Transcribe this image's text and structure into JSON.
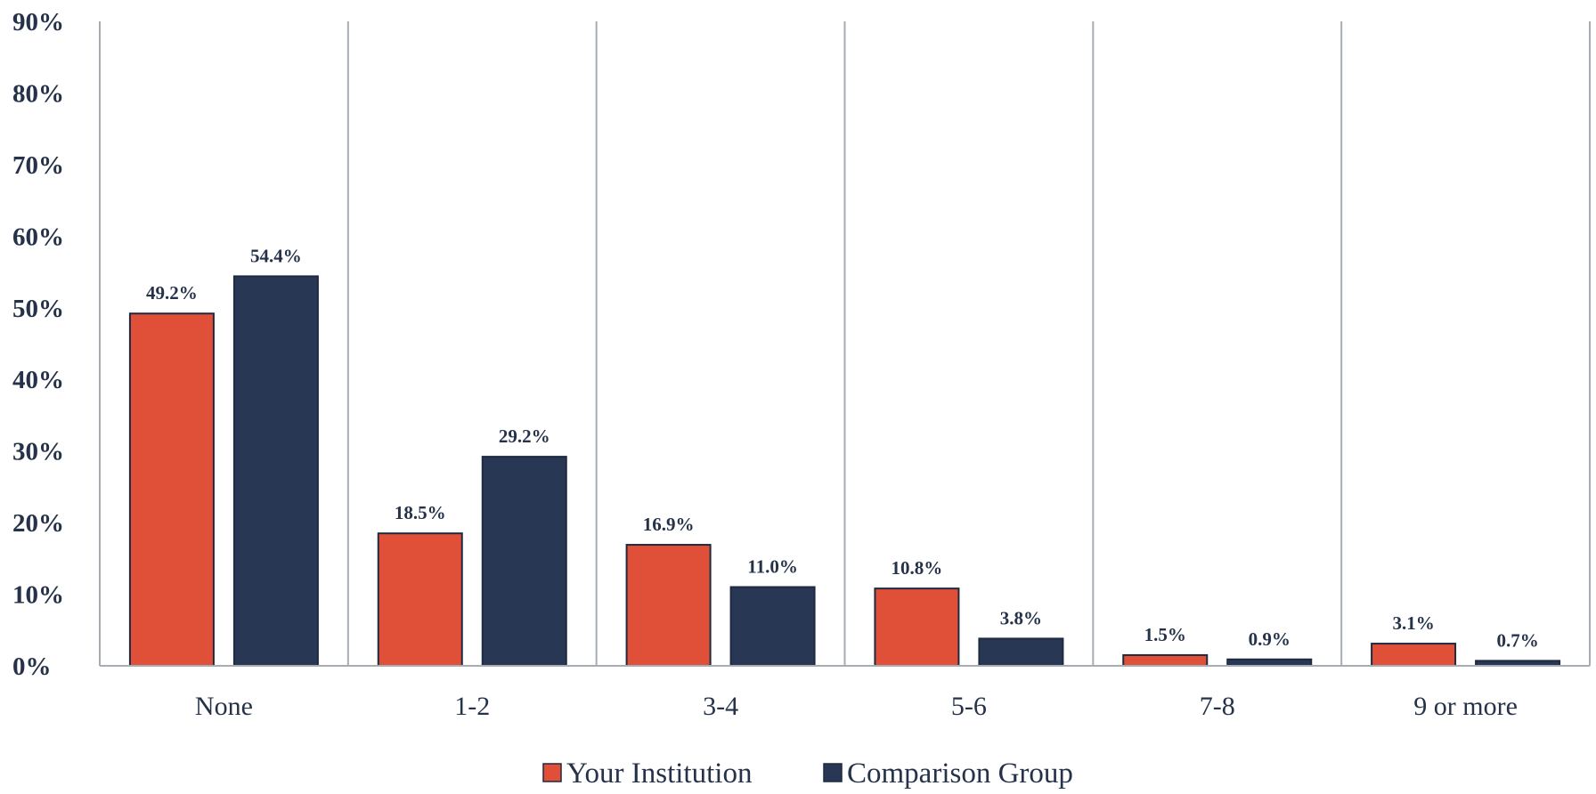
{
  "chart_data": {
    "type": "bar",
    "title": "",
    "xlabel": "",
    "ylabel": "",
    "categories": [
      "None",
      "1-2",
      "3-4",
      "5-6",
      "7-8",
      "9 or more"
    ],
    "series": [
      {
        "name": "Your Institution",
        "color": "#e04f38",
        "values": [
          49.2,
          18.5,
          16.9,
          10.8,
          1.5,
          3.1
        ],
        "labels": [
          "49.2%",
          "18.5%",
          "16.9%",
          "10.8%",
          "1.5%",
          "3.1%"
        ]
      },
      {
        "name": "Comparison Group",
        "color": "#283753",
        "values": [
          54.4,
          29.2,
          11.0,
          3.8,
          0.9,
          0.7
        ],
        "labels": [
          "54.4%",
          "29.2%",
          "11.0%",
          "3.8%",
          "0.9%",
          "0.7%"
        ]
      }
    ],
    "ylim": [
      0,
      90
    ],
    "yticks": [
      "0%",
      "10%",
      "20%",
      "30%",
      "40%",
      "50%",
      "60%",
      "70%",
      "80%",
      "90%"
    ],
    "grid": "vertical category separators",
    "legend": "bottom-center"
  }
}
